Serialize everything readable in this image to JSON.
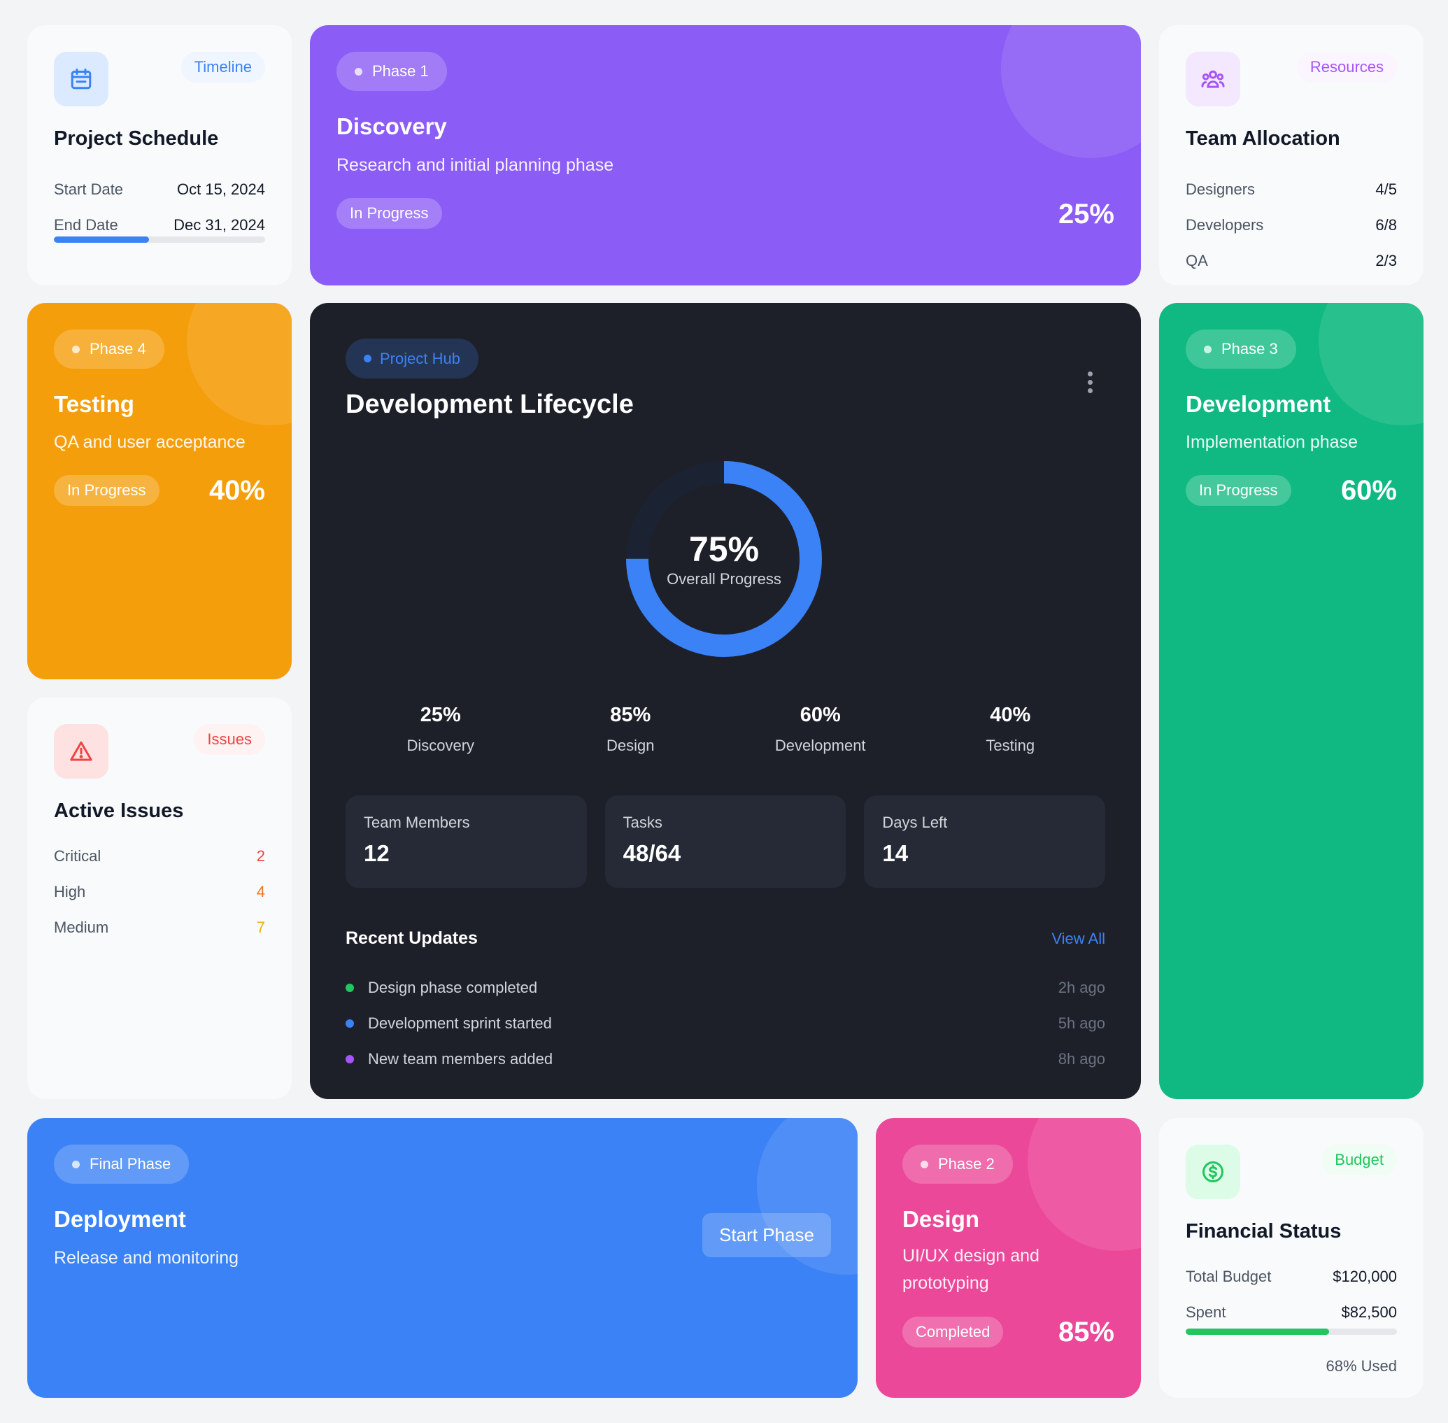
{
  "timeline_card": {
    "tag": "Timeline",
    "title": "Project Schedule",
    "start_label": "Start Date",
    "start_value": "Oct 15, 2024",
    "end_label": "End Date",
    "end_value": "Dec 31, 2024",
    "progress_fraction": 0.45,
    "icon": "calendar-icon",
    "accent": "#3b82f6"
  },
  "discovery_card": {
    "phase": "Phase 1",
    "title": "Discovery",
    "desc": "Research and initial planning phase",
    "status": "In Progress",
    "percent": "25%",
    "color": "#8b5cf6"
  },
  "resources_card": {
    "tag": "Resources",
    "title": "Team Allocation",
    "rows": [
      {
        "label": "Designers",
        "value": "4/5"
      },
      {
        "label": "Developers",
        "value": "6/8"
      },
      {
        "label": "QA",
        "value": "2/3"
      }
    ],
    "icon": "users-icon",
    "accent": "#a855f7"
  },
  "testing_card": {
    "phase": "Phase 4",
    "title": "Testing",
    "desc": "QA and user acceptance",
    "status": "In Progress",
    "percent": "40%",
    "color": "#f59e0b"
  },
  "hub": {
    "tag": "Project Hub",
    "title": "Development Lifecycle",
    "overall_percent": "75%",
    "overall_fraction": 0.75,
    "overall_label": "Overall Progress",
    "phases": [
      {
        "value": "25%",
        "label": "Discovery"
      },
      {
        "value": "85%",
        "label": "Design"
      },
      {
        "value": "60%",
        "label": "Development"
      },
      {
        "value": "40%",
        "label": "Testing"
      }
    ],
    "stats": [
      {
        "label": "Team Members",
        "value": "12"
      },
      {
        "label": "Tasks",
        "value": "48/64"
      },
      {
        "label": "Days Left",
        "value": "14"
      }
    ],
    "updates_title": "Recent Updates",
    "view_all": "View All",
    "updates": [
      {
        "text": "Design phase completed",
        "time": "2h ago",
        "color": "#22c55e"
      },
      {
        "text": "Development sprint started",
        "time": "5h ago",
        "color": "#3b82f6"
      },
      {
        "text": "New team members added",
        "time": "8h ago",
        "color": "#a855f7"
      }
    ],
    "accent": "#3b82f6"
  },
  "development_card": {
    "phase": "Phase 3",
    "title": "Development",
    "desc": "Implementation phase",
    "status": "In Progress",
    "percent": "60%",
    "color": "#10b981"
  },
  "issues_card": {
    "tag": "Issues",
    "title": "Active Issues",
    "rows": [
      {
        "label": "Critical",
        "value": "2",
        "color": "#ef4444"
      },
      {
        "label": "High",
        "value": "4",
        "color": "#f97316"
      },
      {
        "label": "Medium",
        "value": "7",
        "color": "#eab308"
      }
    ],
    "icon": "warning-icon",
    "accent": "#ef4444"
  },
  "deployment_card": {
    "phase": "Final Phase",
    "title": "Deployment",
    "desc": "Release and monitoring",
    "button": "Start Phase",
    "color": "#3b82f6"
  },
  "design_card": {
    "phase": "Phase 2",
    "title": "Design",
    "desc": "UI/UX design and prototyping",
    "status": "Completed",
    "percent": "85%",
    "color": "#ec4899"
  },
  "budget_card": {
    "tag": "Budget",
    "title": "Financial Status",
    "total_label": "Total Budget",
    "total_value": "$120,000",
    "spent_label": "Spent",
    "spent_value": "$82,500",
    "used_fraction": 0.68,
    "used_text": "68% Used",
    "icon": "dollar-icon",
    "accent": "#22c55e"
  }
}
